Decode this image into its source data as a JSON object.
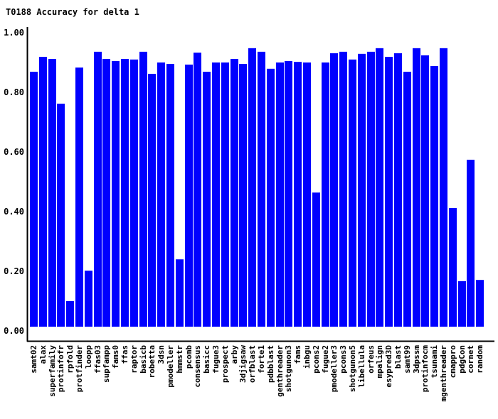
{
  "chart_data": {
    "type": "bar",
    "title": "T0188 Accuracy for delta 1",
    "xlabel": "",
    "ylabel": "",
    "ylim": [
      0,
      1
    ],
    "grid": false,
    "yticks": [
      "0.00",
      "0.20",
      "0.40",
      "0.60",
      "0.80",
      "1.00"
    ],
    "ytick_values": [
      0,
      0.2,
      0.4,
      0.6,
      0.8,
      1.0
    ],
    "bar_color": "#0000ff",
    "categories": [
      "samt02",
      "alax",
      "superfamily",
      "protinfofr",
      "rpfold",
      "protfinder",
      "loopp",
      "ffas03",
      "supfampp",
      "fams0",
      "ffas",
      "raptor",
      "basicb",
      "robetta",
      "3dsn",
      "pmodeller",
      "hmmstr",
      "pcomb",
      "consensus",
      "basicc",
      "fugue3",
      "prospect",
      "arby",
      "3djigsaw",
      "orfblast",
      "forte1",
      "pdbblast",
      "genthreader",
      "shotgunon3",
      "fams",
      "inbgu",
      "pcons2",
      "fugue2",
      "pmodeller3",
      "pcons3",
      "shotgunon5",
      "libellula",
      "orfeus",
      "mpalign",
      "esypred3D",
      "blast",
      "samt99",
      "3dpssm",
      "protinfocm",
      "tsunami",
      "mgenthreader",
      "cmappro",
      "pdgCon",
      "cornet",
      "random"
    ],
    "values": [
      0.869,
      0.919,
      0.912,
      0.762,
      0.1,
      0.883,
      0.202,
      0.936,
      0.912,
      0.905,
      0.912,
      0.91,
      0.936,
      0.862,
      0.9,
      0.895,
      0.24,
      0.893,
      0.933,
      0.869,
      0.9,
      0.9,
      0.912,
      0.895,
      0.948,
      0.936,
      0.879,
      0.9,
      0.905,
      0.902,
      0.9,
      0.464,
      0.9,
      0.931,
      0.936,
      0.91,
      0.929,
      0.936,
      0.948,
      0.919,
      0.931,
      0.869,
      0.948,
      0.924,
      0.888,
      0.948,
      0.412,
      0.167,
      0.574,
      0.171
    ]
  }
}
